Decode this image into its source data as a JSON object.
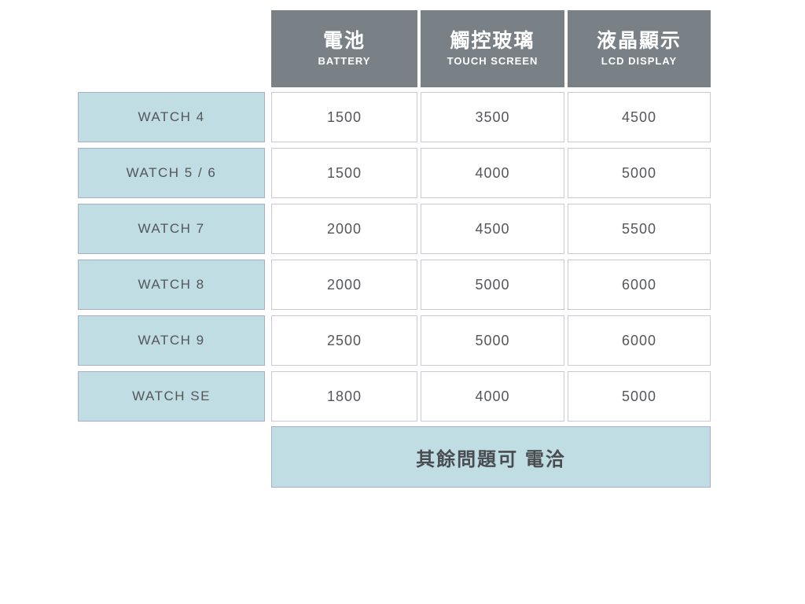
{
  "table": {
    "columns": [
      {
        "zh": "電池",
        "en": "BATTERY"
      },
      {
        "zh": "觸控玻璃",
        "en": "TOUCH SCREEN"
      },
      {
        "zh": "液晶顯示",
        "en": "LCD DISPLAY"
      }
    ],
    "rows": [
      {
        "label": "WATCH 4",
        "values": [
          "1500",
          "3500",
          "4500"
        ]
      },
      {
        "label": "WATCH 5 / 6",
        "values": [
          "1500",
          "4000",
          "5000"
        ]
      },
      {
        "label": "WATCH 7",
        "values": [
          "2000",
          "4500",
          "5500"
        ]
      },
      {
        "label": "WATCH 8",
        "values": [
          "2000",
          "5000",
          "6000"
        ]
      },
      {
        "label": "WATCH 9",
        "values": [
          "2500",
          "5000",
          "6000"
        ]
      },
      {
        "label": "WATCH SE",
        "values": [
          "1800",
          "4000",
          "5000"
        ]
      }
    ],
    "footer_note": "其餘問題可 電洽"
  },
  "colors": {
    "header_bg": "#798186",
    "header_text": "#ffffff",
    "label_bg": "#bfdde3",
    "footer_bg": "#bfdde3",
    "price_cell_bg": "#ffffff",
    "price_cell_border": "#cac7d9",
    "blue_cell_border": "#a9aecb",
    "body_text": "#54565a",
    "page_bg": "#ffffff"
  },
  "chart_data": {
    "type": "table",
    "title": "Watch repair price table",
    "columns": [
      "",
      "電池 BATTERY",
      "觸控玻璃 TOUCH SCREEN",
      "液晶顯示 LCD DISPLAY"
    ],
    "rows": [
      [
        "WATCH 4",
        1500,
        3500,
        4500
      ],
      [
        "WATCH 5 / 6",
        1500,
        4000,
        5000
      ],
      [
        "WATCH 7",
        2000,
        4500,
        5500
      ],
      [
        "WATCH 8",
        2000,
        5000,
        6000
      ],
      [
        "WATCH 9",
        2500,
        5000,
        6000
      ],
      [
        "WATCH SE",
        1800,
        4000,
        5000
      ]
    ],
    "footer_note": "其餘問題可 電洽",
    "layout": {
      "grid": "off",
      "header_row": true,
      "row_label_column": true
    }
  }
}
